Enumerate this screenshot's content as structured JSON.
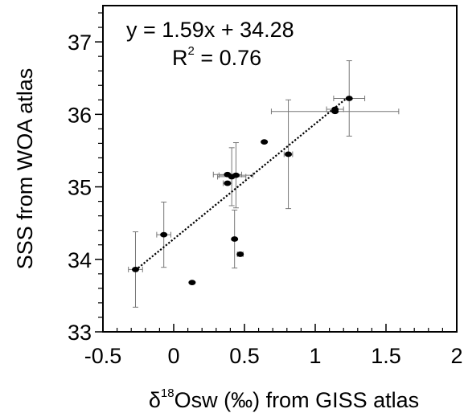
{
  "chart_data": {
    "type": "scatter",
    "xlabel": {
      "delta": "δ",
      "superscript": "18",
      "rest": "Osw (‰) from GISS atlas"
    },
    "ylabel": "SSS from WOA atlas",
    "xlim": [
      -0.5,
      2
    ],
    "ylim": [
      33,
      37.5
    ],
    "xticks": [
      -0.5,
      0,
      0.5,
      1,
      1.5,
      2
    ],
    "xtick_labels": [
      "-0.5",
      "0",
      "0.5",
      "1",
      "1.5",
      "2"
    ],
    "yticks": [
      33,
      34,
      35,
      36,
      37
    ],
    "ytick_labels": [
      "33",
      "34",
      "35",
      "36",
      "37"
    ],
    "grid": false,
    "annotations": {
      "equation": "y = 1.59x + 34.28",
      "r2_base": "R",
      "r2_sup": "2",
      "r2_rest": " = 0.76"
    },
    "regression": {
      "slope": 1.59,
      "intercept": 34.28,
      "x_range": [
        -0.27,
        1.24
      ]
    },
    "points": [
      {
        "x": -0.27,
        "y": 33.86,
        "xerr": 0.05,
        "yerr": 0.52
      },
      {
        "x": -0.07,
        "y": 34.34,
        "xerr": 0.05,
        "yerr": 0.45
      },
      {
        "x": 0.13,
        "y": 33.68,
        "xerr": 0,
        "yerr": 0
      },
      {
        "x": 0.38,
        "y": 35.05,
        "xerr": 0.03,
        "yerr": 0
      },
      {
        "x": 0.38,
        "y": 35.17,
        "xerr": 0.1,
        "yerr": 0
      },
      {
        "x": 0.41,
        "y": 35.14,
        "xerr": 0.1,
        "yerr": 0.4
      },
      {
        "x": 0.44,
        "y": 35.16,
        "xerr": 0.12,
        "yerr": 0.45
      },
      {
        "x": 0.43,
        "y": 34.28,
        "xerr": 0,
        "yerr": 0.4
      },
      {
        "x": 0.47,
        "y": 34.07,
        "xerr": 0.02,
        "yerr": 0
      },
      {
        "x": 0.64,
        "y": 35.62,
        "xerr": 0,
        "yerr": 0
      },
      {
        "x": 0.81,
        "y": 35.45,
        "xerr": 0.03,
        "yerr": 0.75
      },
      {
        "x": 1.14,
        "y": 36.07,
        "xerr": 0.06,
        "yerr": 0
      },
      {
        "x": 1.14,
        "y": 36.04,
        "xerr": 0.45,
        "yerr": 0
      },
      {
        "x": 1.24,
        "y": 36.22,
        "xerr": 0.11,
        "yerr": 0.52
      }
    ]
  }
}
